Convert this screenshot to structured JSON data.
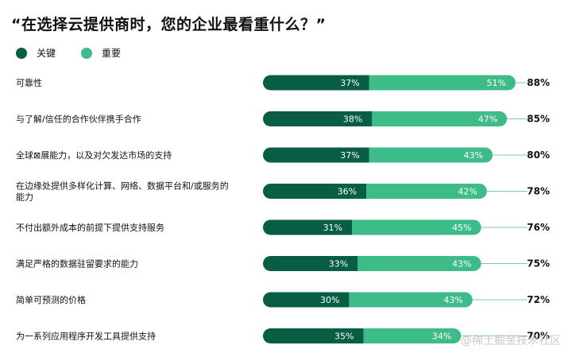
{
  "title": "“在选择云提供商时，您的企业最看重什么？”",
  "watermark": "@稀土掘金技术社区",
  "colors": {
    "key": "#075e45",
    "important": "#3dbb88",
    "leader": "#7fc8a6"
  },
  "legend": [
    {
      "label": "关键",
      "color": "#075e45"
    },
    {
      "label": "重要",
      "color": "#3dbb88"
    }
  ],
  "chart_data": {
    "type": "bar",
    "orientation": "horizontal",
    "stacked": true,
    "categories": [
      "可靠性",
      "与了解/信任的合作伙伴携手合作",
      "全球⊠展能力，以及对欠发达市场的支持",
      "在边缘处提供多样化计算、网络、数据平台和/或服务的能力",
      "不付出额外成本的前提下提供支持服务",
      "满足严格的数据驻留要求的能力",
      "简单可预测的价格",
      "为一系列应用程序开发工具提供支持"
    ],
    "category_lines": [
      [
        "可靠性"
      ],
      [
        "与了解/信任的合作伙伴携手合作"
      ],
      [
        "全球⊠展能力，以及对欠发达市场的支持"
      ],
      [
        "在边缘处提供多样化计算、网络、数据平台和/或服务的",
        "能力"
      ],
      [
        "不付出额外成本的前提下提供支持服务"
      ],
      [
        "满足严格的数据驻留要求的能力"
      ],
      [
        "简单可预测的价格"
      ],
      [
        "为一系列应用程序开发工具提供支持"
      ]
    ],
    "series": [
      {
        "name": "关键",
        "values": [
          37,
          38,
          37,
          36,
          31,
          33,
          30,
          35
        ]
      },
      {
        "name": "重要",
        "values": [
          51,
          47,
          43,
          42,
          45,
          43,
          43,
          34
        ]
      }
    ],
    "totals": [
      88,
      85,
      80,
      78,
      76,
      75,
      72,
      70
    ],
    "unit": "%",
    "xlim": [
      0,
      100
    ],
    "legend_position": "top-left"
  }
}
